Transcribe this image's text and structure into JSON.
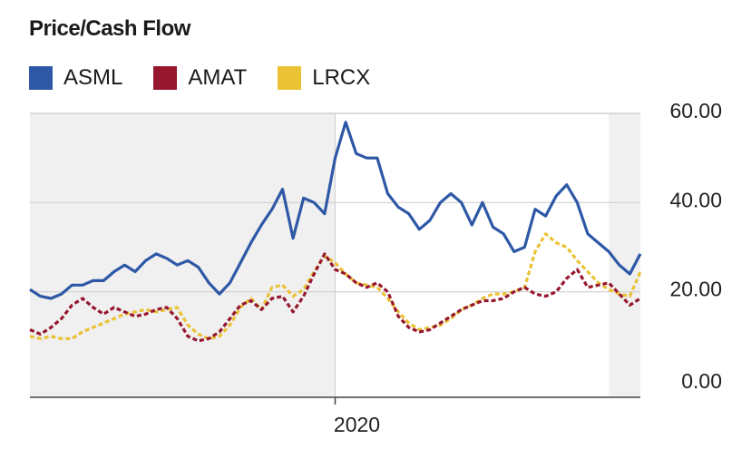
{
  "chart_data": {
    "type": "line",
    "title": "Price/Cash Flow",
    "ylim": [
      0,
      60
    ],
    "yticks": [
      "60.00",
      "40.00",
      "20.00",
      "0.00"
    ],
    "yticks_values": [
      60,
      40,
      20,
      0
    ],
    "xticks": [
      "2020"
    ],
    "xticks_values": [
      2020.0
    ],
    "xlim": [
      2018.55,
      2021.45
    ],
    "grid": true,
    "legend_placement": "top-left",
    "shaded_periods": [
      [
        2018.55,
        2020.0
      ],
      [
        2021.3,
        2021.45
      ]
    ],
    "series": [
      {
        "name": "ASML",
        "color": "#2E58A6",
        "style": "solid",
        "x": [
          2018.55,
          2018.6,
          2018.65,
          2018.7,
          2018.75,
          2018.8,
          2018.85,
          2018.9,
          2018.95,
          2019.0,
          2019.05,
          2019.1,
          2019.15,
          2019.2,
          2019.25,
          2019.3,
          2019.35,
          2019.4,
          2019.45,
          2019.5,
          2019.55,
          2019.6,
          2019.65,
          2019.7,
          2019.75,
          2019.8,
          2019.85,
          2019.9,
          2019.95,
          2020.0,
          2020.05,
          2020.1,
          2020.15,
          2020.2,
          2020.25,
          2020.3,
          2020.35,
          2020.4,
          2020.45,
          2020.5,
          2020.55,
          2020.6,
          2020.65,
          2020.7,
          2020.75,
          2020.8,
          2020.85,
          2020.9,
          2020.95,
          2021.0,
          2021.05,
          2021.1,
          2021.15,
          2021.2,
          2021.25,
          2021.3,
          2021.35,
          2021.4,
          2021.45
        ],
        "values": [
          20.5,
          19,
          18.5,
          19.5,
          21.5,
          21.5,
          22.5,
          22.5,
          24.5,
          26,
          24.5,
          27,
          28.5,
          27.5,
          26,
          27,
          25.5,
          22,
          19.5,
          22,
          26.5,
          31,
          35,
          38.5,
          43,
          32,
          41,
          40,
          37.5,
          50,
          58,
          51,
          50,
          50,
          42,
          39,
          37.5,
          34,
          36,
          40,
          42,
          40,
          35,
          40,
          34.5,
          33,
          29,
          30,
          38.5,
          37,
          41.5,
          44,
          40,
          33,
          31,
          29,
          26,
          24,
          28.5
        ]
      },
      {
        "name": "AMAT",
        "color": "#96172E",
        "style": "dashed",
        "x": [
          2018.55,
          2018.6,
          2018.65,
          2018.7,
          2018.75,
          2018.8,
          2018.85,
          2018.9,
          2018.95,
          2019.0,
          2019.05,
          2019.1,
          2019.15,
          2019.2,
          2019.25,
          2019.3,
          2019.35,
          2019.4,
          2019.45,
          2019.5,
          2019.55,
          2019.6,
          2019.65,
          2019.7,
          2019.75,
          2019.8,
          2019.85,
          2019.9,
          2019.95,
          2020.0,
          2020.05,
          2020.1,
          2020.15,
          2020.2,
          2020.25,
          2020.3,
          2020.35,
          2020.4,
          2020.45,
          2020.5,
          2020.55,
          2020.6,
          2020.65,
          2020.7,
          2020.75,
          2020.8,
          2020.85,
          2020.9,
          2020.95,
          2021.0,
          2021.05,
          2021.1,
          2021.15,
          2021.2,
          2021.25,
          2021.3,
          2021.35,
          2021.4,
          2021.45
        ],
        "values": [
          11.5,
          10.5,
          12,
          14,
          17,
          18.5,
          16.5,
          15,
          16.5,
          15.5,
          14.5,
          15,
          16,
          16.5,
          14,
          10,
          9,
          9.5,
          11,
          14,
          17,
          18,
          16,
          18.5,
          19,
          15.5,
          19,
          24,
          28.5,
          25,
          24,
          22,
          21,
          22,
          20,
          14.5,
          12,
          11,
          11.5,
          13,
          14.5,
          16,
          17,
          18,
          18,
          18.5,
          20,
          21,
          19.5,
          19,
          20,
          23,
          25,
          21,
          21.5,
          22,
          19.5,
          17,
          18.5
        ]
      },
      {
        "name": "LRCX",
        "color": "#EBC136",
        "style": "dashed",
        "x": [
          2018.55,
          2018.6,
          2018.65,
          2018.7,
          2018.75,
          2018.8,
          2018.85,
          2018.9,
          2018.95,
          2019.0,
          2019.05,
          2019.1,
          2019.15,
          2019.2,
          2019.25,
          2019.3,
          2019.35,
          2019.4,
          2019.45,
          2019.5,
          2019.55,
          2019.6,
          2019.65,
          2019.7,
          2019.75,
          2019.8,
          2019.85,
          2019.9,
          2019.95,
          2020.0,
          2020.05,
          2020.1,
          2020.15,
          2020.2,
          2020.25,
          2020.3,
          2020.35,
          2020.4,
          2020.45,
          2020.5,
          2020.55,
          2020.6,
          2020.65,
          2020.7,
          2020.75,
          2020.8,
          2020.85,
          2020.9,
          2020.95,
          2021.0,
          2021.05,
          2021.1,
          2021.15,
          2021.2,
          2021.25,
          2021.3,
          2021.35,
          2021.4,
          2021.45
        ],
        "values": [
          10,
          9.5,
          10,
          9.5,
          9.5,
          11,
          12,
          13,
          14,
          15,
          15.5,
          16,
          15.5,
          16,
          16.5,
          12.5,
          10.5,
          9.5,
          10,
          12.5,
          16.5,
          18.5,
          16,
          21,
          21.5,
          19,
          20.5,
          24.5,
          28,
          26.5,
          24,
          22,
          21.5,
          21,
          18.5,
          15.5,
          13,
          11.5,
          12,
          12.5,
          14,
          16,
          17,
          18.5,
          19.5,
          19.5,
          20,
          21,
          29,
          33,
          31,
          30,
          27,
          24.5,
          22,
          20.5,
          19.5,
          19,
          24.5
        ]
      }
    ]
  }
}
